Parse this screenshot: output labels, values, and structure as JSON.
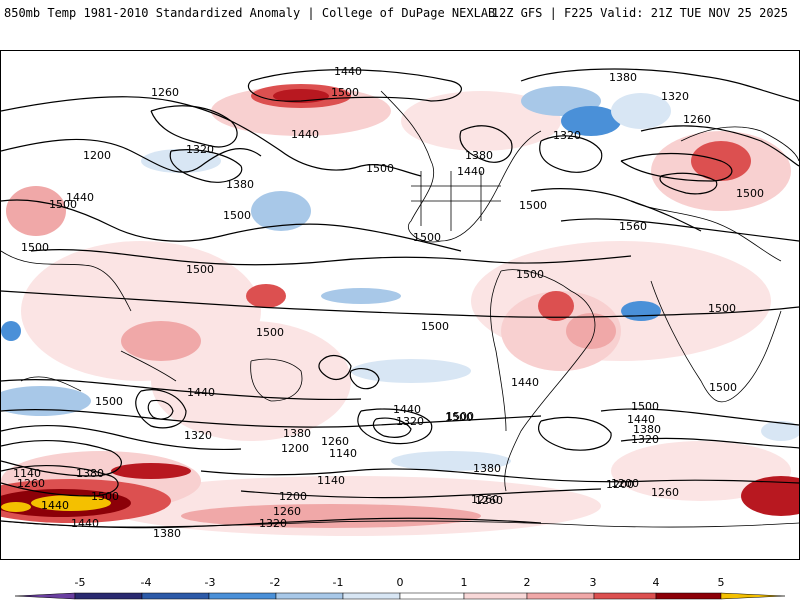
{
  "header": {
    "title_left": "850mb Temp 1981-2010 Standardized Anomaly | College of DuPage NEXLAB",
    "title_right": "12Z GFS | F225 Valid: 21Z TUE NOV 25 2025"
  },
  "map": {
    "description_contours": "geopotential height (dam)",
    "contour_labels": [
      "1440",
      "1500",
      "1380",
      "1260",
      "1320",
      "1200",
      "1440",
      "1380",
      "1500",
      "1500",
      "1440",
      "1500",
      "1320",
      "1380",
      "1260",
      "1320",
      "1440",
      "1500",
      "1500",
      "1500",
      "1560",
      "1500",
      "1500",
      "1500",
      "1500",
      "1500",
      "1500",
      "1500",
      "1440",
      "1440",
      "1500",
      "1500",
      "1440",
      "1320",
      "1380",
      "1260",
      "1200",
      "1140",
      "1500",
      "1440",
      "1380",
      "1260",
      "1320",
      "1140",
      "1260",
      "1380",
      "1500",
      "1440",
      "1140",
      "1200",
      "1260",
      "1200",
      "1260",
      "1320",
      "1380",
      "1320",
      "1380",
      "1500",
      "1440",
      "1200",
      "1260"
    ],
    "colors": {
      "warm_1": "#f8d8d8",
      "warm_2": "#f0a8a8",
      "warm_3": "#dc5050",
      "warm_4": "#b81820",
      "warm_5": "#8c0008",
      "warm_extreme": "#f4c000",
      "cool_1": "#d8e6f4",
      "cool_2": "#a8c8e8",
      "cool_3": "#4a90d8",
      "cool_4": "#2c5aa8",
      "cool_5": "#2a2a70",
      "cool_extreme": "#6a3fa0"
    }
  },
  "colorbar": {
    "ticks": [
      "-5",
      "-4",
      "-3",
      "-2",
      "-1",
      "0",
      "1",
      "2",
      "3",
      "4",
      "5"
    ],
    "colors": [
      "#6a3fa0",
      "#2a2a70",
      "#2c5aa8",
      "#4a90d8",
      "#a8c8e8",
      "#d8e6f4",
      "#ffffff",
      "#ffffff",
      "#f8d8d8",
      "#f0a8a8",
      "#dc5050",
      "#b81820",
      "#8c0008",
      "#f4c000"
    ]
  }
}
